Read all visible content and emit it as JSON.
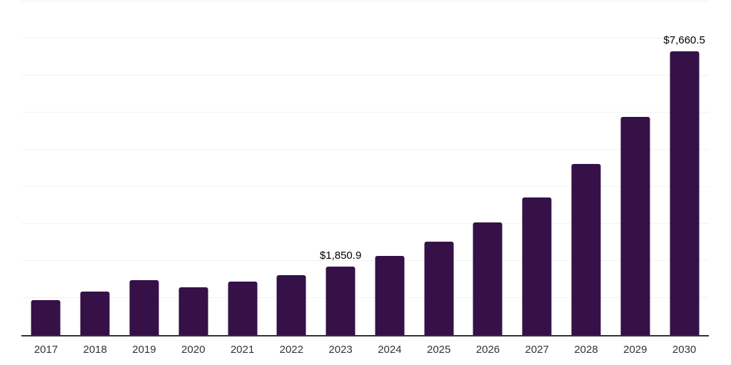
{
  "chart": {
    "background": "#ffffff",
    "bar_color": "#351148",
    "axis_color": "#333333",
    "gridline_color": "#f2f2f2",
    "tick_label_color": "#333333",
    "value_label_color": "#000000"
  },
  "chart_data": {
    "type": "bar",
    "title": "",
    "xlabel": "",
    "ylabel": "",
    "categories": [
      "2017",
      "2018",
      "2019",
      "2020",
      "2021",
      "2022",
      "2023",
      "2024",
      "2025",
      "2026",
      "2027",
      "2028",
      "2029",
      "2030"
    ],
    "values": [
      945,
      1180,
      1485,
      1295,
      1440,
      1625,
      1850.9,
      2140,
      2525,
      3030,
      3705,
      4615,
      5880,
      7660.5
    ],
    "data_labels": {
      "2023": "$1,850.9",
      "2030": "$7,660.5"
    },
    "ylim": [
      0,
      9000
    ],
    "grid_step": 1000,
    "grid": true,
    "legend": false
  }
}
